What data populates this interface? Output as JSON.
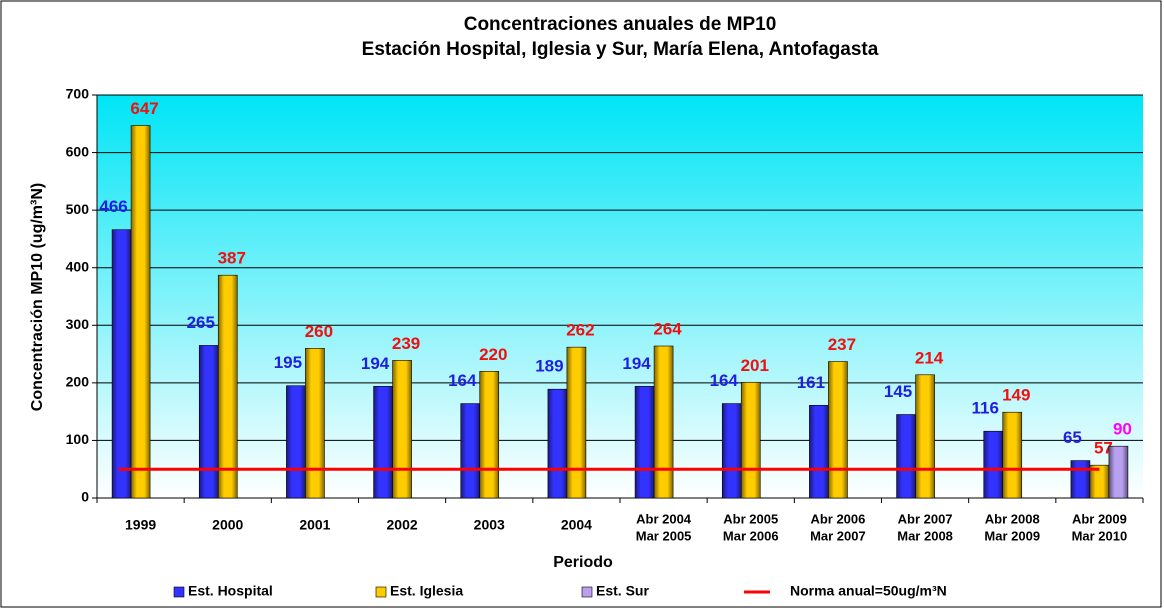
{
  "chart_data": {
    "type": "bar",
    "title": [
      "Concentraciones anuales de MP10",
      "Estación Hospital, Iglesia y Sur, María Elena, Antofagasta"
    ],
    "x_label": "Periodo",
    "y_label": "Concentración MP10 (ug/m³N)",
    "categories": [
      "1999",
      "2000",
      "2001",
      "2002",
      "2003",
      "2004",
      [
        "Abr 2004",
        "Mar 2005"
      ],
      [
        "Abr 2005",
        "Mar 2006"
      ],
      [
        "Abr 2006",
        "Mar 2007"
      ],
      [
        "Abr 2007",
        "Mar 2008"
      ],
      [
        "Abr 2008",
        "Mar 2009"
      ],
      [
        "Abr 2009",
        "Mar 2010"
      ]
    ],
    "series": [
      {
        "name": "Est. Hospital",
        "color": "#3333ff",
        "label_color": "#1f1fe0",
        "values": [
          466,
          265,
          195,
          194,
          164,
          189,
          194,
          164,
          161,
          145,
          116,
          65
        ]
      },
      {
        "name": "Est. Iglesia",
        "color": "#ffcc00",
        "label_color": "#ee1111",
        "values": [
          647,
          387,
          260,
          239,
          220,
          262,
          264,
          201,
          237,
          214,
          149,
          57
        ]
      },
      {
        "name": "Est. Sur",
        "color": "#b8a0f0",
        "label_color": "#ff00ff",
        "values": [
          null,
          null,
          null,
          null,
          null,
          null,
          null,
          null,
          null,
          null,
          null,
          90
        ]
      },
      {
        "name": "Norma anual=50ug/m³N",
        "color": "#ff0000",
        "type": "line",
        "values": [
          50,
          50,
          50,
          50,
          50,
          50,
          50,
          50,
          50,
          50,
          50,
          50
        ]
      }
    ],
    "ylim": [
      0,
      700
    ],
    "yticks": [
      0,
      100,
      200,
      300,
      400,
      500,
      600,
      700
    ],
    "grid": true,
    "legend": "bottom"
  }
}
